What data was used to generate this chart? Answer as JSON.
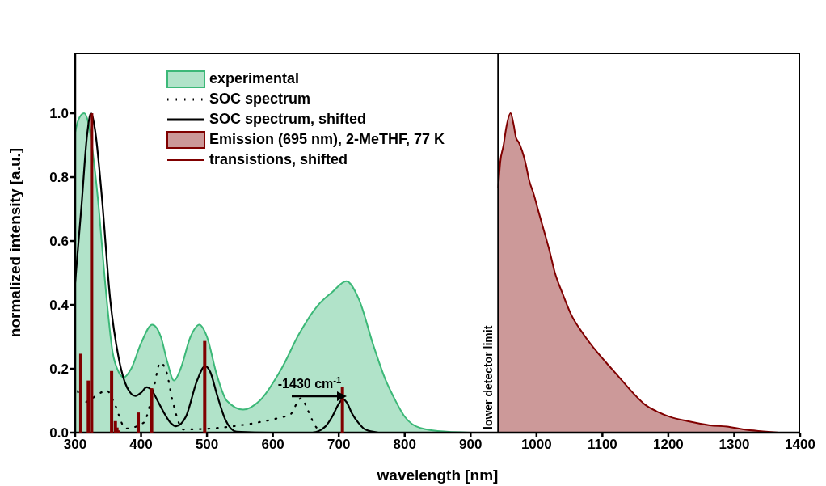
{
  "chart_data": {
    "type": "area",
    "xlabel": "wavelength [nm]",
    "ylabel": "normalized intensity [a.u.]",
    "xlim": [
      300,
      1400
    ],
    "xticks": [
      300,
      400,
      500,
      600,
      700,
      800,
      900,
      1000,
      1100,
      1200,
      1300,
      1400
    ],
    "ylim": [
      0,
      1.19
    ],
    "yticks": [
      {
        "value": 0,
        "label": "0.0"
      },
      {
        "value": 0.2,
        "label": "0.2"
      },
      {
        "value": 0.4,
        "label": "0.4"
      },
      {
        "value": 0.6,
        "label": "0.6"
      },
      {
        "value": 0.8,
        "label": "0.8"
      },
      {
        "value": 1,
        "label": "1.0"
      }
    ],
    "legend": "top left",
    "series": [
      {
        "name": "experimental",
        "color": "#3cb878",
        "x": [
          300,
          305,
          313.6,
          320,
          330,
          336,
          345,
          357,
          366,
          374,
          385,
          400,
          417,
          430,
          440,
          450,
          460,
          475,
          488.5,
          500,
          515,
          530,
          555,
          580,
          613,
          640,
          668,
          690,
          711.5,
          730,
          753,
          770,
          782.6,
          800,
          817,
          850,
          900
        ],
        "values": [
          0.94,
          0.98,
          1.0,
          0.97,
          0.82,
          0.7,
          0.48,
          0.25,
          0.19,
          0.173,
          0.2,
          0.28,
          0.338,
          0.3,
          0.22,
          0.163,
          0.2,
          0.3,
          0.338,
          0.3,
          0.18,
          0.1,
          0.072,
          0.1,
          0.2,
          0.31,
          0.398,
          0.44,
          0.474,
          0.42,
          0.27,
          0.17,
          0.114,
          0.05,
          0.02,
          0.005,
          0.0
        ]
      },
      {
        "name": "SOC spectrum",
        "type": "line",
        "line_style": "dotted",
        "color": "#000000",
        "x": [
          304,
          310.6,
          341,
          348,
          358,
          377,
          406,
          409,
          420,
          429,
          438,
          448,
          464,
          624.7,
          643,
          652.6,
          664,
          670
        ],
        "values": [
          0.13,
          0.093,
          0.127,
          0.132,
          0.099,
          0.013,
          0.034,
          0.053,
          0.147,
          0.219,
          0.194,
          0.098,
          0.01,
          0.054,
          0.108,
          0.072,
          0.022,
          0.007
        ]
      },
      {
        "name": "SOC spectrum, shifted",
        "type": "line",
        "line_style": "solid",
        "color": "#000000",
        "x": [
          300,
          310,
          318,
          324,
          330,
          340,
          353,
          366,
          375,
          383,
          391.5,
          400,
          408.5,
          417,
          425,
          434,
          445,
          453,
          468,
          485,
          497,
          505,
          515,
          528,
          545,
          600,
          660,
          680,
          690,
          700,
          706,
          712,
          720,
          730,
          740,
          760
        ],
        "values": [
          0.47,
          0.72,
          0.93,
          1.0,
          0.95,
          0.75,
          0.42,
          0.234,
          0.16,
          0.127,
          0.115,
          0.125,
          0.142,
          0.13,
          0.1,
          0.065,
          0.03,
          0.02,
          0.05,
          0.163,
          0.208,
          0.19,
          0.12,
          0.04,
          0.003,
          0,
          0,
          0.02,
          0.05,
          0.09,
          0.105,
          0.095,
          0.06,
          0.03,
          0.01,
          0
        ]
      },
      {
        "name": "Emission (695 nm), 2-MeTHF, 77 K",
        "color": "#800000",
        "x": [
          942,
          945,
          950,
          954,
          960.7,
          965,
          969,
          973,
          983,
          989,
          996,
          1002.5,
          1011,
          1020,
          1028,
          1039,
          1052,
          1071,
          1092,
          1111,
          1126,
          1147,
          1165,
          1182,
          1203,
          1229,
          1263,
          1289,
          1314,
          1344,
          1368
        ],
        "values": [
          0.767,
          0.847,
          0.9,
          0.954,
          1.0,
          0.967,
          0.923,
          0.909,
          0.847,
          0.789,
          0.745,
          0.696,
          0.634,
          0.567,
          0.5,
          0.438,
          0.372,
          0.309,
          0.252,
          0.207,
          0.172,
          0.123,
          0.087,
          0.067,
          0.049,
          0.036,
          0.023,
          0.019,
          0.01,
          0.004,
          0
        ]
      },
      {
        "name": "transistions, shifted",
        "type": "bar",
        "color": "#800000",
        "x": [
          308.5,
          320,
          325,
          355.3,
          361,
          363.4,
          365,
          395.7,
          416,
          496.6,
          705.5
        ],
        "values": [
          0.247,
          0.163,
          1.0,
          0.193,
          0.036,
          0.016,
          0.007,
          0.063,
          0.139,
          0.287,
          0.143
        ]
      }
    ],
    "ref_lines": [
      {
        "axis": "x",
        "value": 942,
        "label": "lower detector limit",
        "color": "#000000"
      }
    ],
    "annotations": [
      "-1430 cm$^{-1}$"
    ]
  }
}
